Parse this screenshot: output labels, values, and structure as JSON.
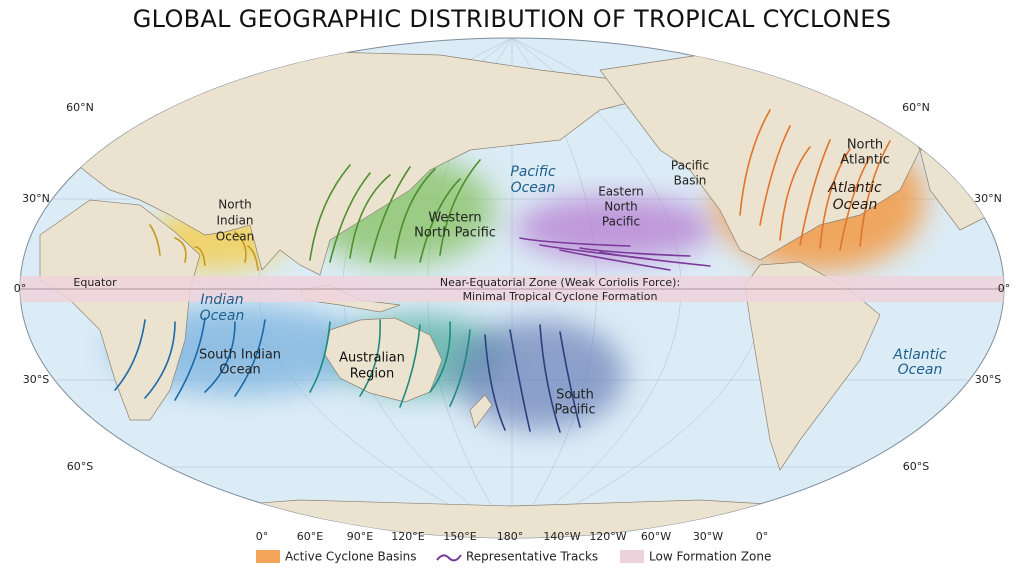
{
  "title": "GLOBAL GEOGRAPHIC DISTRIBUTION OF TROPICAL CYCLONES",
  "latitude_labels": {
    "left": [
      "60°N",
      "30°N",
      "0°",
      "30°S",
      "60°S"
    ],
    "right": [
      "60°N",
      "30°N",
      "0°",
      "30°S",
      "60°S"
    ]
  },
  "longitude_labels": [
    "0°",
    "60°E",
    "90°E",
    "120°E",
    "150°E",
    "180°",
    "140°W",
    "120°W",
    "60°W",
    "30°W",
    "0°"
  ],
  "equator_label": "Equator",
  "equatorial_zone": [
    "Near-Equatorial Zone (Weak Coriolis Force):",
    "Minimal Tropical Cyclone Formation"
  ],
  "regions": [
    {
      "lines": [
        "North",
        "Indian",
        "Ocean"
      ]
    },
    {
      "lines": [
        "Western",
        "North Pacific"
      ]
    },
    {
      "lines": [
        "Pacific",
        "Ocean"
      ]
    },
    {
      "lines": [
        "Eastern",
        "North",
        "Pacific"
      ]
    },
    {
      "lines": [
        "Pacific",
        "Basin"
      ]
    },
    {
      "lines": [
        "North",
        "Atlantic"
      ]
    },
    {
      "lines": [
        "Atlantic",
        "Ocean"
      ]
    },
    {
      "lines": [
        "Indian",
        "Ocean"
      ]
    },
    {
      "lines": [
        "South Indian",
        "Ocean"
      ]
    },
    {
      "lines": [
        "Australian",
        "Region"
      ]
    },
    {
      "lines": [
        "South",
        "Pacific"
      ]
    },
    {
      "lines": [
        "Atlantic",
        "Ocean"
      ]
    }
  ],
  "legend": [
    "Active Cyclone Basins",
    "Representative Tracks",
    "Low Formation Zone"
  ]
}
